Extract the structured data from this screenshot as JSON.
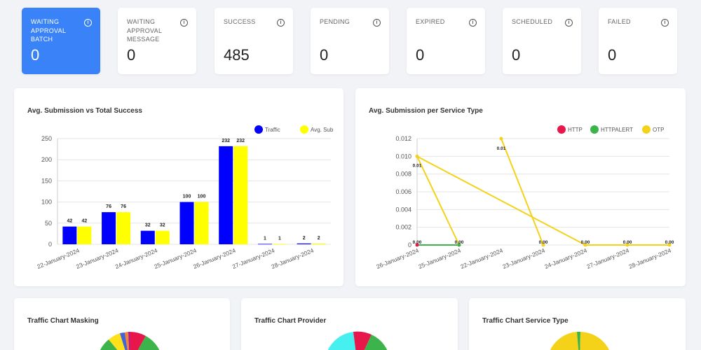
{
  "stats": [
    {
      "label": "WAITING APPROVAL BATCH",
      "value": "0",
      "active": true
    },
    {
      "label": "WAITING APPROVAL MESSAGE",
      "value": "0",
      "active": false
    },
    {
      "label": "SUCCESS",
      "value": "485",
      "active": false
    },
    {
      "label": "PENDING",
      "value": "0",
      "active": false
    },
    {
      "label": "EXPIRED",
      "value": "0",
      "active": false
    },
    {
      "label": "SCHEDULED",
      "value": "0",
      "active": false
    },
    {
      "label": "FAILED",
      "value": "0",
      "active": false
    }
  ],
  "info_glyph": "i",
  "colors": {
    "accent": "#3a82f7",
    "traffic": "#0000ff",
    "avg_sub": "#ffff00",
    "http": "#e8174b",
    "httpalert": "#3cb44b",
    "otp": "#f5d21a"
  },
  "chart_data": [
    {
      "type": "bar",
      "title": "Avg. Submission vs Total Success",
      "categories": [
        "22-January-2024",
        "23-January-2024",
        "24-January-2024",
        "25-January-2024",
        "26-January-2024",
        "27-January-2024",
        "28-January-2024"
      ],
      "series": [
        {
          "name": "Traffic",
          "values": [
            42,
            76,
            32,
            100,
            232,
            1,
            2
          ]
        },
        {
          "name": "Avg. Sub",
          "values": [
            42,
            76,
            32,
            100,
            232,
            1,
            2
          ]
        }
      ],
      "ylim": [
        0,
        250
      ],
      "yticks": [
        "0",
        "50",
        "100",
        "150",
        "200",
        "250"
      ],
      "legend": "top-right",
      "grid": true
    },
    {
      "type": "line",
      "title": "Avg. Submission per Service Type",
      "categories": [
        "26-January-2024",
        "25-January-2024",
        "22-January-2024",
        "23-January-2024",
        "24-January-2024",
        "27-January-2024",
        "28-January-2024"
      ],
      "series": [
        {
          "name": "HTTP",
          "values": [
            0,
            null,
            null,
            null,
            null,
            null,
            null
          ]
        },
        {
          "name": "HTTPALERT",
          "values": [
            0,
            0,
            null,
            null,
            null,
            null,
            null
          ]
        },
        {
          "name": "OTP",
          "values": [
            0.01,
            0,
            0.012,
            0,
            0,
            0,
            0
          ]
        }
      ],
      "value_labels": [
        "0.00",
        "0.00",
        "0.01",
        "0.00",
        "0.00",
        "0.00",
        "0.00",
        "0.01"
      ],
      "ylim": [
        0,
        0.012
      ],
      "yticks": [
        "0",
        "0.002",
        "0.004",
        "0.006",
        "0.008",
        "0.010",
        "0.012"
      ],
      "legend": "top-right",
      "grid": true
    },
    {
      "type": "pie",
      "title": "Traffic Chart Masking"
    },
    {
      "type": "pie",
      "title": "Traffic Chart Provider"
    },
    {
      "type": "pie",
      "title": "Traffic Chart Service Type"
    }
  ]
}
